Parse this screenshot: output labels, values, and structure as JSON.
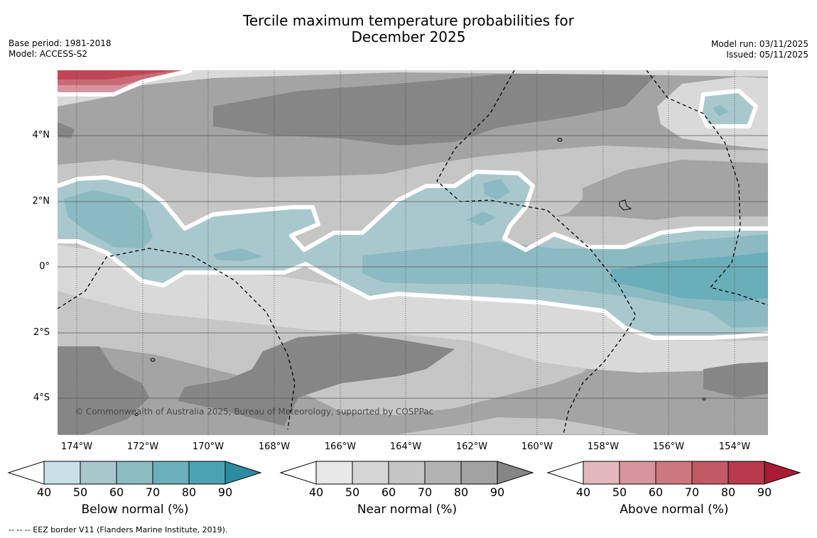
{
  "title_line1": "Tercile maximum temperature probabilities for",
  "title_line2": "December 2025",
  "base_period": "Base period: 1981-2018",
  "model": "Model: ACCESS-S2",
  "model_run": "Model run: 03/11/2025",
  "issued": "Issued: 05/11/2025",
  "lat_labels": [
    "4°N",
    "2°N",
    "0°",
    "2°S",
    "4°S"
  ],
  "lon_labels": [
    "174°W",
    "172°W",
    "170°W",
    "168°W",
    "166°W",
    "164°W",
    "162°W",
    "160°W",
    "158°W",
    "156°W",
    "154°W"
  ],
  "copyright": "© Commonwealth of Australia 2025, Bureau of Meteorology, supported by COSPPac",
  "colorbars": [
    {
      "label": "Below normal (%)",
      "ticks": [
        "40",
        "50",
        "60",
        "70",
        "80",
        "90"
      ],
      "colors": [
        "#ffffff",
        "#c8e1e7",
        "#a7c7cb",
        "#8cbbc2",
        "#6bb0bb",
        "#4aa3b2",
        "#2e8ca0"
      ]
    },
    {
      "label": "Near normal (%)",
      "ticks": [
        "40",
        "50",
        "60",
        "70",
        "80",
        "90"
      ],
      "colors": [
        "#ffffff",
        "#e8e8e8",
        "#d6d6d6",
        "#c5c5c5",
        "#b3b3b3",
        "#a2a2a2",
        "#868686"
      ]
    },
    {
      "label": "Above normal (%)",
      "ticks": [
        "40",
        "50",
        "60",
        "70",
        "80",
        "90"
      ],
      "colors": [
        "#ffffff",
        "#e2b8bd",
        "#d8959c",
        "#cd7880",
        "#c25a66",
        "#b83a4c",
        "#a81c35"
      ]
    }
  ],
  "footnote": "--  --  -- EEZ border V11 (Flanders Marine Institute, 2019).",
  "fills": {
    "grey_light": "#d9d9d9",
    "grey_mid": "#c6c6c6",
    "grey": "#a4a4a4",
    "grey_dark": "#868686",
    "teal_light": "#a9c8cd",
    "teal_mid": "#8cbac2",
    "teal_dark": "#6aaeb9",
    "red_light": "#d8959c",
    "red_mid": "#c96b76",
    "red_dark": "#c04656"
  }
}
